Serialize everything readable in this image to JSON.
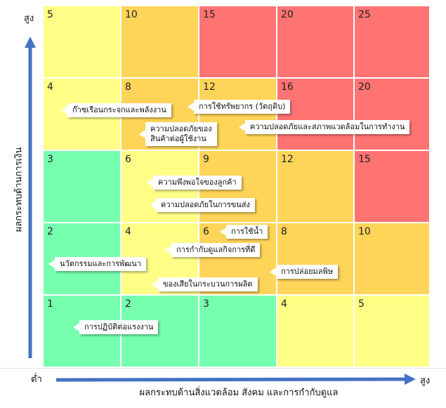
{
  "axes": {
    "y_title": "ผลกระทบด้านการเงิน",
    "x_title": "ผลกระทบด้านสิ่งแวดล้อม สังคม และการกำกับดูแล",
    "y_high": "สูง",
    "origin_low": "ต่ำ",
    "x_high": "สูง"
  },
  "colors": {
    "green": "#77ffb0",
    "yellow": "#ffff88",
    "orange": "#ffd559",
    "red": "#ff7373",
    "arrow": "#4472c4"
  },
  "matrix": {
    "rows": [
      {
        "cells": [
          {
            "value": "5",
            "color": "yellow"
          },
          {
            "value": "10",
            "color": "orange"
          },
          {
            "value": "15",
            "color": "red"
          },
          {
            "value": "20",
            "color": "red"
          },
          {
            "value": "25",
            "color": "red"
          }
        ]
      },
      {
        "cells": [
          {
            "value": "4",
            "color": "yellow"
          },
          {
            "value": "8",
            "color": "orange"
          },
          {
            "value": "12",
            "color": "orange"
          },
          {
            "value": "16",
            "color": "red"
          },
          {
            "value": "20",
            "color": "red"
          }
        ]
      },
      {
        "cells": [
          {
            "value": "3",
            "color": "green"
          },
          {
            "value": "6",
            "color": "yellow"
          },
          {
            "value": "9",
            "color": "orange"
          },
          {
            "value": "12",
            "color": "orange"
          },
          {
            "value": "15",
            "color": "red"
          }
        ]
      },
      {
        "cells": [
          {
            "value": "2",
            "color": "green"
          },
          {
            "value": "4",
            "color": "yellow"
          },
          {
            "value": "6",
            "color": "orange"
          },
          {
            "value": "8",
            "color": "orange"
          },
          {
            "value": "10",
            "color": "orange"
          }
        ]
      },
      {
        "cells": [
          {
            "value": "1",
            "color": "green"
          },
          {
            "value": "2",
            "color": "green"
          },
          {
            "value": "3",
            "color": "green"
          },
          {
            "value": "4",
            "color": "yellow"
          },
          {
            "value": "5",
            "color": "yellow"
          }
        ]
      }
    ]
  },
  "issues": [
    "ก๊าซเรือนกระจกและพลังงาน",
    "การใช้ทรัพยากร (วัตถุดิบ)",
    "ความปลอดภัยของ\nสินค้าต่อผู้ใช้งาน",
    "ความปลอดภัยและสภาพแวดล้อมในการทำงาน",
    "ความพึงพอใจของลูกค้า",
    "ความปลอดภัยในการขนส่ง",
    "การใช้น้ำ",
    "การกำกับดูแลกิจการที่ดี",
    "นวัตกรรมและการพัฒนา",
    "การปล่อยมลพิษ",
    "ของเสียในกระบวนการผลิต",
    "การปฏิบัติต่อแรงงาน"
  ]
}
